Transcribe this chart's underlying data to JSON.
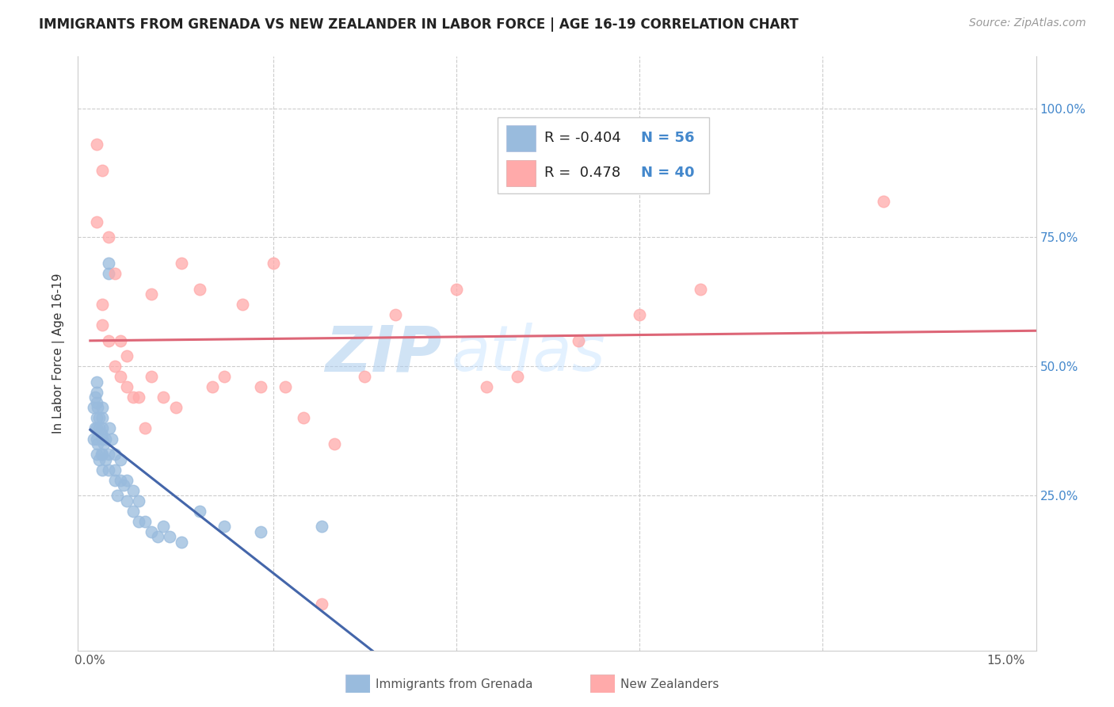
{
  "title": "IMMIGRANTS FROM GRENADA VS NEW ZEALANDER IN LABOR FORCE | AGE 16-19 CORRELATION CHART",
  "source": "Source: ZipAtlas.com",
  "ylabel": "In Labor Force | Age 16-19",
  "xlim": [
    -0.002,
    0.155
  ],
  "ylim": [
    -0.05,
    1.1
  ],
  "blue_R": "-0.404",
  "blue_N": "56",
  "pink_R": "0.478",
  "pink_N": "40",
  "blue_color": "#99BBDD",
  "pink_color": "#FFAAAA",
  "blue_line_color": "#4466AA",
  "pink_line_color": "#DD6677",
  "legend_label_blue": "Immigrants from Grenada",
  "legend_label_pink": "New Zealanders",
  "blue_scatter_x": [
    0.0005,
    0.0005,
    0.0008,
    0.0008,
    0.001,
    0.001,
    0.001,
    0.001,
    0.001,
    0.001,
    0.001,
    0.0012,
    0.0012,
    0.0015,
    0.0015,
    0.0015,
    0.0018,
    0.0018,
    0.002,
    0.002,
    0.002,
    0.002,
    0.002,
    0.002,
    0.0022,
    0.0025,
    0.0025,
    0.003,
    0.003,
    0.003,
    0.003,
    0.0032,
    0.0035,
    0.004,
    0.004,
    0.004,
    0.0045,
    0.005,
    0.005,
    0.0055,
    0.006,
    0.006,
    0.007,
    0.007,
    0.008,
    0.008,
    0.009,
    0.01,
    0.011,
    0.012,
    0.013,
    0.015,
    0.018,
    0.022,
    0.028,
    0.038
  ],
  "blue_scatter_y": [
    0.36,
    0.42,
    0.38,
    0.44,
    0.33,
    0.36,
    0.38,
    0.4,
    0.43,
    0.45,
    0.47,
    0.35,
    0.42,
    0.32,
    0.38,
    0.4,
    0.33,
    0.37,
    0.3,
    0.33,
    0.36,
    0.38,
    0.4,
    0.42,
    0.35,
    0.32,
    0.36,
    0.68,
    0.7,
    0.3,
    0.33,
    0.38,
    0.36,
    0.28,
    0.3,
    0.33,
    0.25,
    0.28,
    0.32,
    0.27,
    0.24,
    0.28,
    0.22,
    0.26,
    0.2,
    0.24,
    0.2,
    0.18,
    0.17,
    0.19,
    0.17,
    0.16,
    0.22,
    0.19,
    0.18,
    0.19
  ],
  "pink_scatter_x": [
    0.001,
    0.002,
    0.001,
    0.002,
    0.002,
    0.003,
    0.003,
    0.004,
    0.004,
    0.005,
    0.005,
    0.006,
    0.006,
    0.007,
    0.008,
    0.009,
    0.01,
    0.01,
    0.012,
    0.014,
    0.015,
    0.018,
    0.02,
    0.022,
    0.025,
    0.028,
    0.03,
    0.032,
    0.035,
    0.04,
    0.045,
    0.05,
    0.06,
    0.065,
    0.07,
    0.08,
    0.09,
    0.1,
    0.13,
    0.038
  ],
  "pink_scatter_y": [
    0.93,
    0.88,
    0.78,
    0.58,
    0.62,
    0.55,
    0.75,
    0.68,
    0.5,
    0.55,
    0.48,
    0.46,
    0.52,
    0.44,
    0.44,
    0.38,
    0.48,
    0.64,
    0.44,
    0.42,
    0.7,
    0.65,
    0.46,
    0.48,
    0.62,
    0.46,
    0.7,
    0.46,
    0.4,
    0.35,
    0.48,
    0.6,
    0.65,
    0.46,
    0.48,
    0.55,
    0.6,
    0.65,
    0.82,
    0.04
  ]
}
